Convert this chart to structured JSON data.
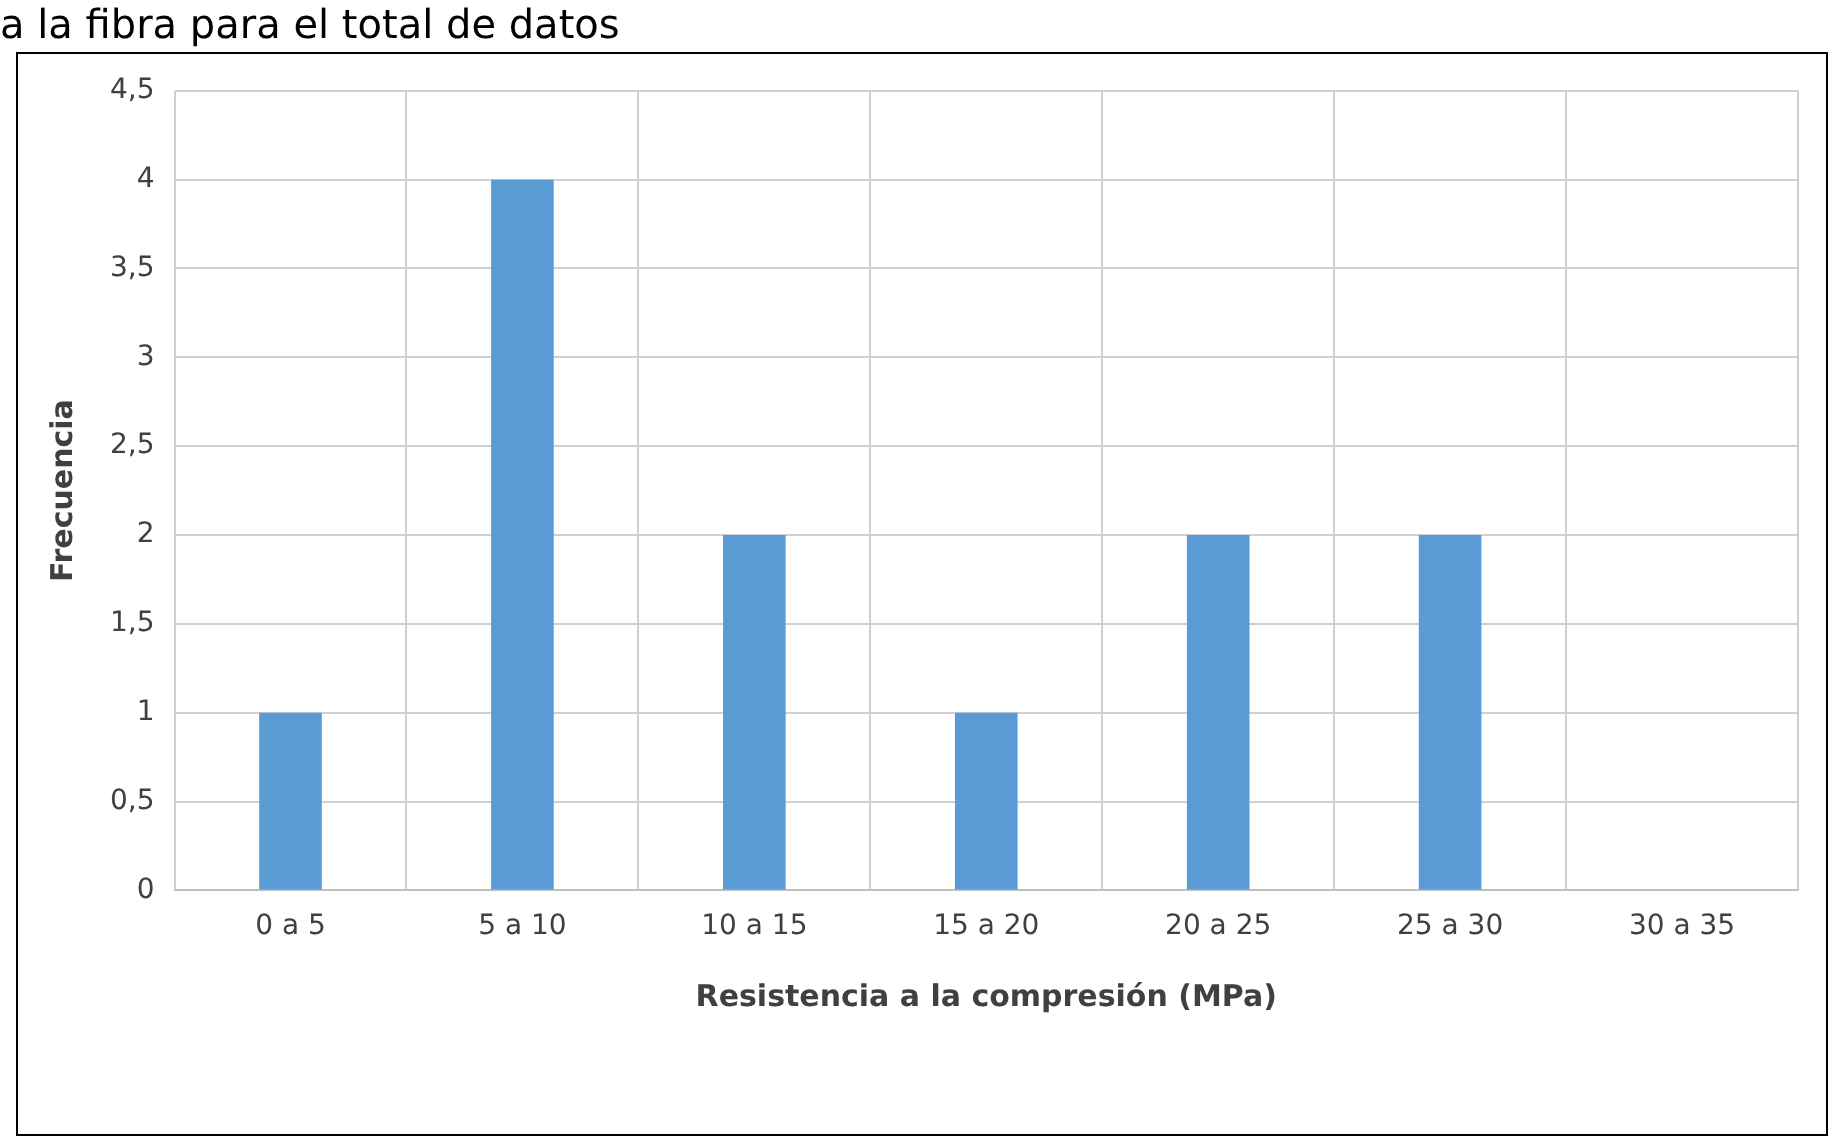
{
  "chart_data": {
    "type": "bar",
    "title": "a la fibra para el total de datos",
    "xlabel": "Resistencia a la compresión (MPa)",
    "ylabel": "Frecuencia",
    "categories": [
      "0 a 5",
      "5 a 10",
      "10 a 15",
      "15 a 20",
      "20 a 25",
      "25 a 30",
      "30 a 35"
    ],
    "values": [
      1,
      4,
      2,
      1,
      2,
      2,
      0
    ],
    "color": "#5b9bd5",
    "ylim": [
      0,
      4.5
    ],
    "yticks": [
      {
        "value": 0,
        "label": "0"
      },
      {
        "value": 0.5,
        "label": "0,5"
      },
      {
        "value": 1,
        "label": "1"
      },
      {
        "value": 1.5,
        "label": "1,5"
      },
      {
        "value": 2,
        "label": "2"
      },
      {
        "value": 2.5,
        "label": "2,5"
      },
      {
        "value": 3,
        "label": "3"
      },
      {
        "value": 3.5,
        "label": "3,5"
      },
      {
        "value": 4,
        "label": "4"
      },
      {
        "value": 4.5,
        "label": "4,5"
      }
    ],
    "grid": true,
    "legend": false
  }
}
